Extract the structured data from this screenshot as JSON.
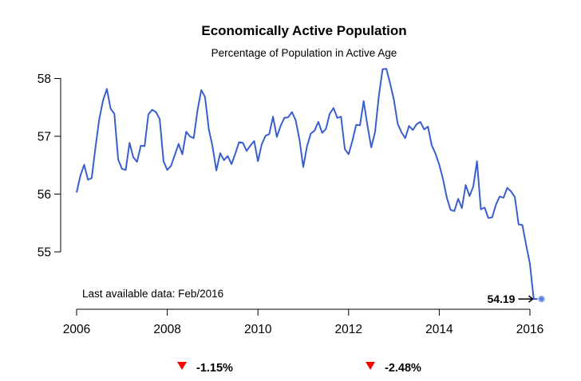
{
  "chart_data": {
    "type": "line",
    "title": "Economically Active Population",
    "subtitle": "Percentage of Population in Active Age",
    "xlabel": "",
    "ylabel": "",
    "x_ticks": [
      "2006",
      "2008",
      "2010",
      "2012",
      "2014",
      "2016"
    ],
    "y_ticks": [
      "55",
      "56",
      "57",
      "58"
    ],
    "xlim": [
      2006.0,
      2016.2
    ],
    "ylim": [
      54.05,
      58.3
    ],
    "grid": false,
    "line_color": "#3a5fcd",
    "series": [
      {
        "x": [
          2006.0,
          2006.083,
          2006.167,
          2006.25,
          2006.333,
          2006.417,
          2006.5,
          2006.583,
          2006.667,
          2006.75,
          2006.833,
          2006.917,
          2007.0,
          2007.083,
          2007.167,
          2007.25,
          2007.333,
          2007.417,
          2007.5,
          2007.583,
          2007.667,
          2007.75,
          2007.833,
          2007.917,
          2008.0,
          2008.083,
          2008.167,
          2008.25,
          2008.333,
          2008.417,
          2008.5,
          2008.583,
          2008.667,
          2008.75,
          2008.833,
          2008.917,
          2009.0,
          2009.083,
          2009.167,
          2009.25,
          2009.333,
          2009.417,
          2009.5,
          2009.583,
          2009.667,
          2009.75,
          2009.833,
          2009.917,
          2010.0,
          2010.083,
          2010.167,
          2010.25,
          2010.333,
          2010.417,
          2010.5,
          2010.583,
          2010.667,
          2010.75,
          2010.833,
          2010.917,
          2011.0,
          2011.083,
          2011.167,
          2011.25,
          2011.333,
          2011.417,
          2011.5,
          2011.583,
          2011.667,
          2011.75,
          2011.833,
          2011.917,
          2012.0,
          2012.083,
          2012.167,
          2012.25,
          2012.333,
          2012.417,
          2012.5,
          2012.583,
          2012.667,
          2012.75,
          2012.833,
          2012.917,
          2013.0,
          2013.083,
          2013.167,
          2013.25,
          2013.333,
          2013.417,
          2013.5,
          2013.583,
          2013.667,
          2013.75,
          2013.833,
          2013.917,
          2014.0,
          2014.083,
          2014.167,
          2014.25,
          2014.333,
          2014.417,
          2014.5,
          2014.583,
          2014.667,
          2014.75,
          2014.833,
          2014.917,
          2015.0,
          2015.083,
          2015.167,
          2015.25,
          2015.333,
          2015.417,
          2015.5,
          2015.583,
          2015.667,
          2015.75,
          2015.833,
          2015.917,
          2016.0,
          2016.083
        ],
        "values": [
          56.03,
          56.32,
          56.51,
          56.25,
          56.28,
          56.82,
          57.3,
          57.62,
          57.82,
          57.48,
          57.39,
          56.6,
          56.44,
          56.42,
          56.89,
          56.64,
          56.56,
          56.84,
          56.83,
          57.38,
          57.46,
          57.42,
          57.3,
          56.57,
          56.42,
          56.49,
          56.68,
          56.87,
          56.69,
          57.08,
          57.0,
          56.97,
          57.45,
          57.8,
          57.68,
          57.12,
          56.82,
          56.41,
          56.71,
          56.59,
          56.66,
          56.52,
          56.7,
          56.9,
          56.89,
          56.75,
          56.84,
          56.92,
          56.57,
          56.86,
          57.01,
          57.04,
          57.34,
          56.99,
          57.18,
          57.32,
          57.33,
          57.42,
          57.28,
          56.94,
          56.47,
          56.83,
          57.05,
          57.1,
          57.25,
          57.06,
          57.13,
          57.39,
          57.49,
          57.32,
          57.34,
          56.78,
          56.69,
          56.92,
          57.2,
          57.19,
          57.61,
          57.18,
          56.81,
          57.07,
          57.7,
          58.16,
          58.17,
          57.91,
          57.63,
          57.22,
          57.07,
          56.97,
          57.18,
          57.11,
          57.21,
          57.25,
          57.12,
          57.17,
          56.85,
          56.7,
          56.51,
          56.26,
          55.94,
          55.73,
          55.71,
          55.92,
          55.76,
          56.16,
          55.97,
          56.13,
          56.57,
          55.74,
          55.77,
          55.59,
          55.6,
          55.82,
          55.96,
          55.94,
          56.11,
          56.05,
          55.95,
          55.48,
          55.47,
          55.12,
          54.8,
          54.19
        ]
      }
    ],
    "last_point": {
      "x": 2016.167,
      "value": 54.19,
      "label": "54.19"
    },
    "annotation": "Last available data: Feb/2016",
    "changes": [
      {
        "value": "-1.15%",
        "direction": "down",
        "color": "#ff0000"
      },
      {
        "value": "-2.48%",
        "direction": "down",
        "color": "#ff0000"
      }
    ]
  }
}
